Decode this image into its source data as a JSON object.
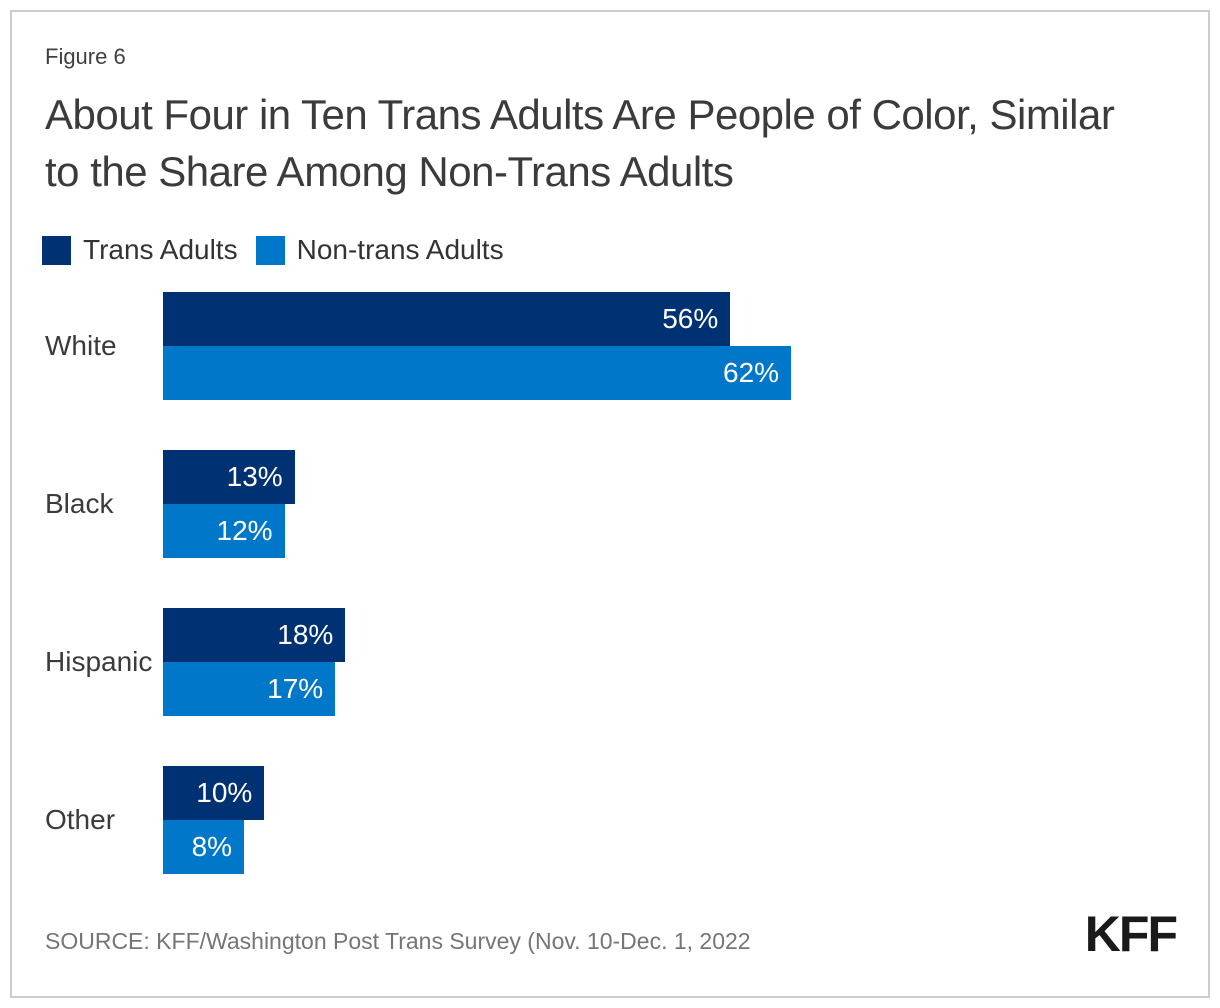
{
  "figure_label": "Figure 6",
  "title": "About Four in Ten Trans Adults Are People of Color, Similar to the Share Among Non-Trans Adults",
  "legend": {
    "items": [
      {
        "label": "Trans Adults",
        "color": "#003273"
      },
      {
        "label": "Non-trans Adults",
        "color": "#0077C8"
      }
    ]
  },
  "chart_data": {
    "type": "bar",
    "orientation": "horizontal",
    "grouped": true,
    "categories": [
      "White",
      "Black",
      "Hispanic",
      "Other"
    ],
    "series": [
      {
        "name": "Trans Adults",
        "color": "#003273",
        "values": [
          56,
          13,
          18,
          10
        ]
      },
      {
        "name": "Non-trans Adults",
        "color": "#0077C8",
        "values": [
          62,
          12,
          17,
          8
        ]
      }
    ],
    "value_suffix": "%",
    "xlim": [
      0,
      100
    ],
    "grid": false,
    "legend_position": "top-left",
    "value_labels": "inside-end"
  },
  "source": "SOURCE: KFF/Washington Post Trans Survey (Nov. 10-Dec. 1, 2022",
  "logo_text": "KFF",
  "colors": {
    "trans": "#003273",
    "non_trans": "#0077C8",
    "title_text": "#3b3b3b",
    "source_text": "#757575",
    "frame_border": "#cccccc"
  }
}
